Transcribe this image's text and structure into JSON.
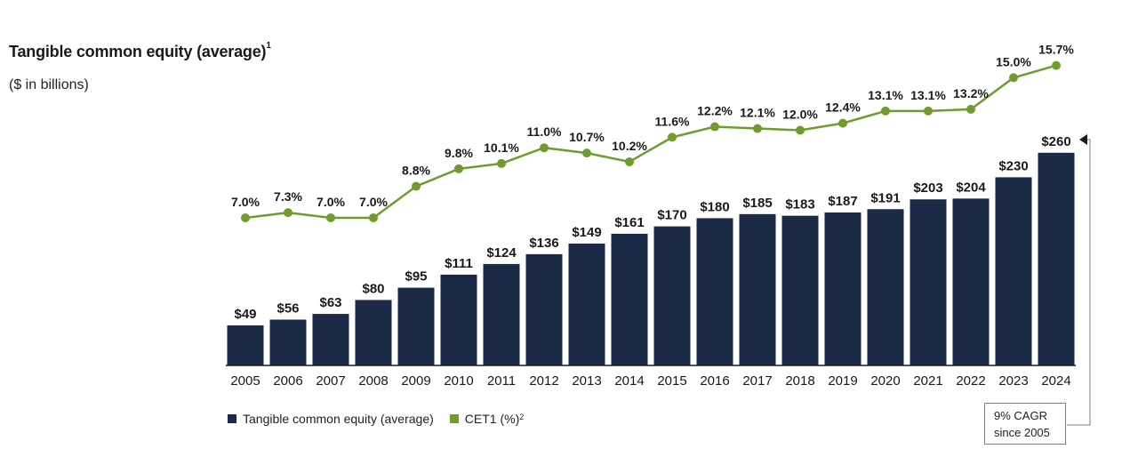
{
  "title": "Tangible common equity (average)",
  "title_footnote": "1",
  "subtitle": "($ in billions)",
  "legend": {
    "bar_label": "Tangible common equity (average)",
    "line_label": "CET1 (%)",
    "line_footnote": "2"
  },
  "annotation": {
    "line1": "9% CAGR",
    "line2": "since 2005"
  },
  "colors": {
    "bar": "#1b2a47",
    "line": "#6f9b2f",
    "axis": "#1a1a1a"
  },
  "chart_data": {
    "type": "bar",
    "categories": [
      "2005",
      "2006",
      "2007",
      "2008",
      "2009",
      "2010",
      "2011",
      "2012",
      "2013",
      "2014",
      "2015",
      "2016",
      "2017",
      "2018",
      "2019",
      "2020",
      "2021",
      "2022",
      "2023",
      "2024"
    ],
    "series": [
      {
        "name": "Tangible common equity (average)",
        "type": "bar",
        "values": [
          49,
          56,
          63,
          80,
          95,
          111,
          124,
          136,
          149,
          161,
          170,
          180,
          185,
          183,
          187,
          191,
          203,
          204,
          230,
          260
        ],
        "labels": [
          "$49",
          "$56",
          "$63",
          "$80",
          "$95",
          "$111",
          "$124",
          "$136",
          "$149",
          "$161",
          "$170",
          "$180",
          "$185",
          "$183",
          "$187",
          "$191",
          "$203",
          "$204",
          "$230",
          "$260"
        ]
      },
      {
        "name": "CET1 (%)",
        "type": "line",
        "values": [
          7.0,
          7.3,
          7.0,
          7.0,
          8.8,
          9.8,
          10.1,
          11.0,
          10.7,
          10.2,
          11.6,
          12.2,
          12.1,
          12.0,
          12.4,
          13.1,
          13.1,
          13.2,
          15.0,
          15.7
        ],
        "labels": [
          "7.0%",
          "7.3%",
          "7.0%",
          "7.0%",
          "8.8%",
          "9.8%",
          "10.1%",
          "11.0%",
          "10.7%",
          "10.2%",
          "11.6%",
          "12.2%",
          "12.1%",
          "12.0%",
          "12.4%",
          "13.1%",
          "13.1%",
          "13.2%",
          "15.0%",
          "15.7%"
        ]
      }
    ],
    "legend_position": "bottom-left",
    "grid": false
  }
}
